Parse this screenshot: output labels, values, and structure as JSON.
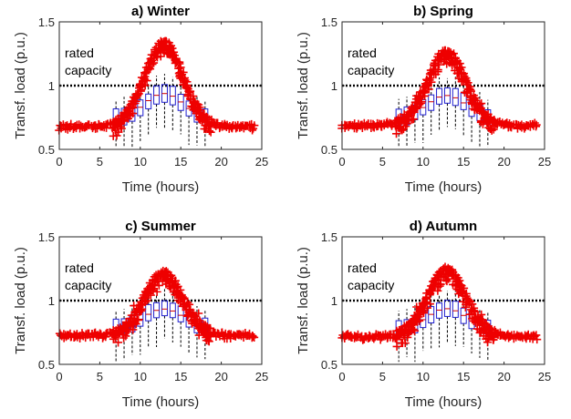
{
  "chart_data": [
    {
      "type": "box",
      "title": "a) Winter",
      "xlabel": "Time (hours)",
      "ylabel": "Transf. load (p.u.)",
      "xlim": [
        0,
        25
      ],
      "ylim": [
        0.5,
        1.5
      ],
      "xticks": [
        0,
        5,
        10,
        15,
        20,
        25
      ],
      "yticks": [
        0.5,
        1,
        1.5
      ],
      "rated_capacity": 1.0,
      "rated_capacity_label": [
        "rated",
        "capacity"
      ],
      "peak": 1.34,
      "base": 0.69
    },
    {
      "type": "box",
      "title": "b) Spring",
      "xlabel": "Time (hours)",
      "ylabel": "Transf. load (p.u.)",
      "xlim": [
        0,
        25
      ],
      "ylim": [
        0.5,
        1.5
      ],
      "xticks": [
        0,
        5,
        10,
        15,
        20,
        25
      ],
      "yticks": [
        0.5,
        1,
        1.5
      ],
      "rated_capacity": 1.0,
      "rated_capacity_label": [
        "rated",
        "capacity"
      ],
      "peak": 1.27,
      "base": 0.7
    },
    {
      "type": "box",
      "title": "c) Summer",
      "xlabel": "Time (hours)",
      "ylabel": "Transf. load (p.u.)",
      "xlim": [
        0,
        25
      ],
      "ylim": [
        0.5,
        1.5
      ],
      "xticks": [
        0,
        5,
        10,
        15,
        20,
        25
      ],
      "yticks": [
        0.5,
        1,
        1.5
      ],
      "rated_capacity": 1.0,
      "rated_capacity_label": [
        "rated",
        "capacity"
      ],
      "peak": 1.22,
      "base": 0.74
    },
    {
      "type": "box",
      "title": "d) Autumn",
      "xlabel": "Time (hours)",
      "ylabel": "Transf. load (p.u.)",
      "xlim": [
        0,
        25
      ],
      "ylim": [
        0.5,
        1.5
      ],
      "xticks": [
        0,
        5,
        10,
        15,
        20,
        25
      ],
      "yticks": [
        0.5,
        1,
        1.5
      ],
      "rated_capacity": 1.0,
      "rated_capacity_label": [
        "rated",
        "capacity"
      ],
      "peak": 1.25,
      "base": 0.73
    }
  ]
}
